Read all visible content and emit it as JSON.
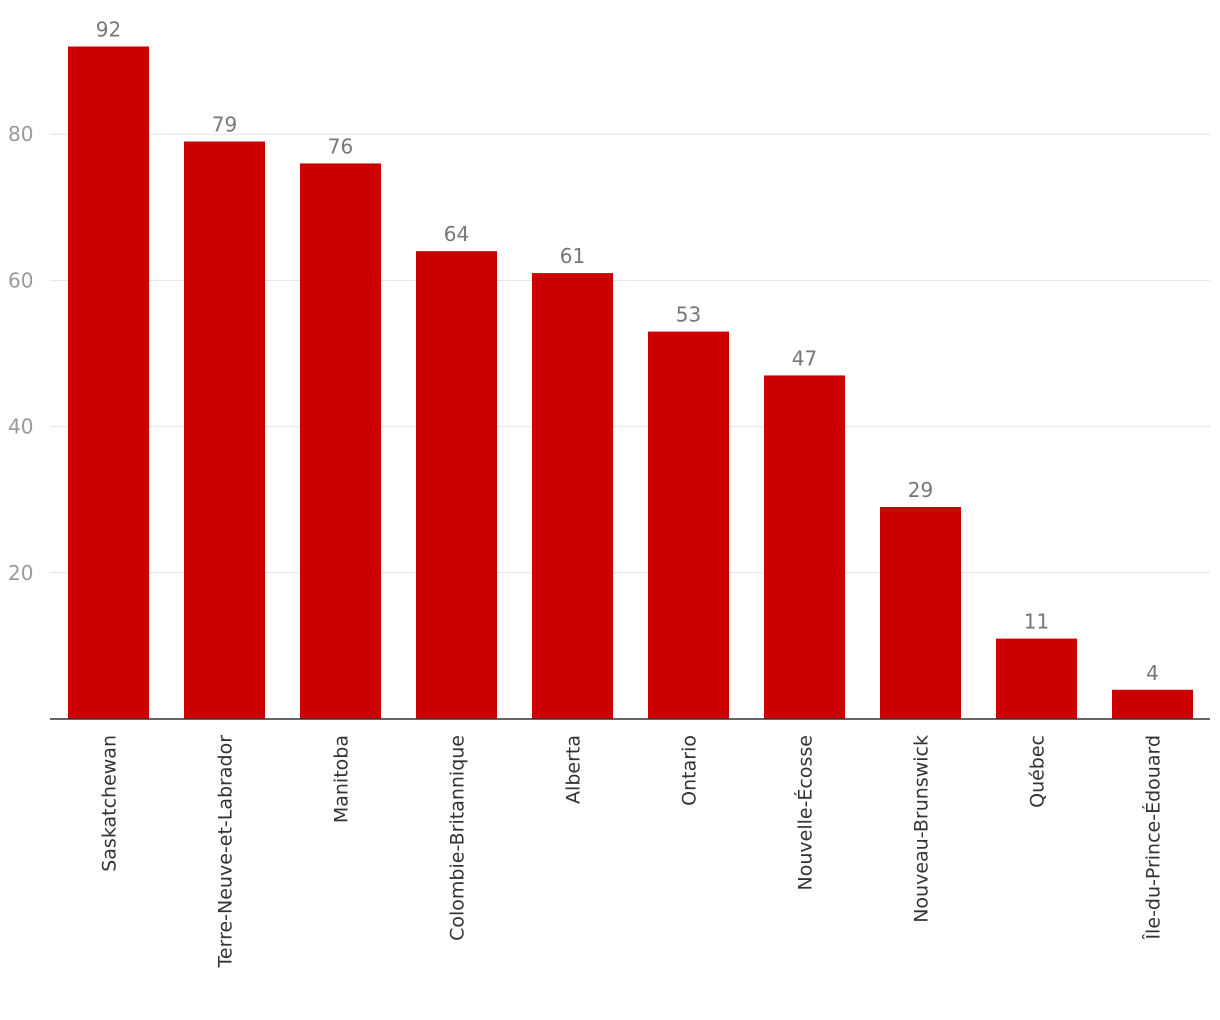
{
  "chart_data": {
    "type": "bar",
    "title": "",
    "xlabel": "",
    "ylabel": "",
    "categories": [
      "Saskatchewan",
      "Terre-Neuve-et-Labrador",
      "Manitoba",
      "Colombie-Britannique",
      "Alberta",
      "Ontario",
      "Nouvelle-Écosse",
      "Nouveau-Brunswick",
      "Québec",
      "Île-du-Prince-Édouard"
    ],
    "values": [
      92,
      79,
      76,
      64,
      61,
      53,
      47,
      29,
      11,
      4
    ],
    "ylim": [
      0,
      95
    ],
    "yticks": [
      20,
      40,
      60,
      80
    ],
    "grid": true,
    "legend": "none",
    "colors": {
      "bar": "#cc0000",
      "grid": "#e3e3e3",
      "axis": "#333333"
    }
  }
}
